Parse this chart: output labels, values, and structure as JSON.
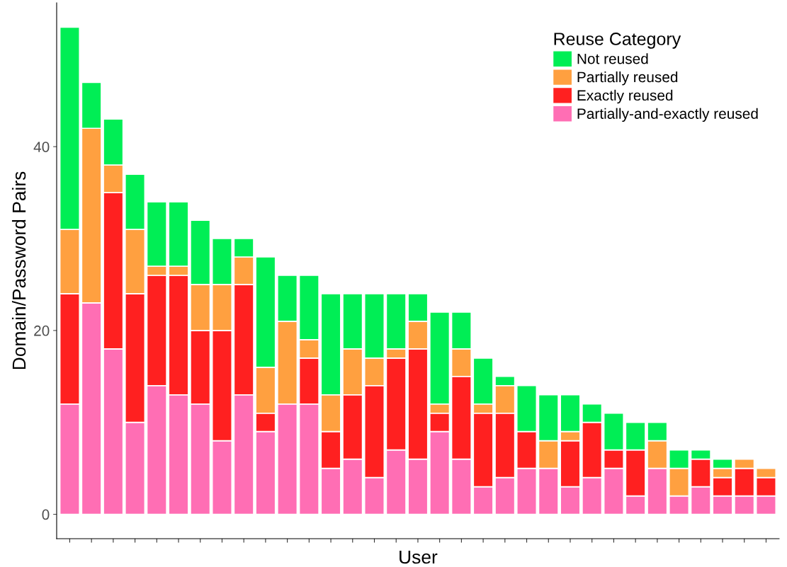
{
  "chart_data": {
    "type": "bar",
    "stacked": true,
    "xlabel": "User",
    "ylabel": "Domain/Password Pairs",
    "legend_title": "Reuse Category",
    "legend": "top right",
    "grid": false,
    "categories": [
      null,
      null,
      null,
      null,
      null,
      null,
      null,
      null,
      null,
      null,
      null,
      null,
      null,
      null,
      null,
      null,
      null,
      null,
      null,
      null,
      null,
      null,
      null,
      null,
      null,
      null,
      null,
      null,
      null,
      null,
      null,
      null,
      null
    ],
    "ylim": [
      -2.65,
      55.65
    ],
    "yticks": [
      0,
      20,
      40
    ],
    "series": [
      {
        "name": "Partially-and-exactly reused",
        "color": "#ff6eb4",
        "values": [
          12,
          23,
          18,
          10,
          14,
          13,
          12,
          8,
          13,
          9,
          12,
          12,
          5,
          6,
          4,
          7,
          6,
          9,
          6,
          3,
          4,
          5,
          5,
          3,
          4,
          5,
          2,
          5,
          2,
          3,
          2,
          2,
          2
        ]
      },
      {
        "name": "Exactly reused",
        "color": "#ff2020",
        "values": [
          12,
          0,
          17,
          14,
          12,
          13,
          8,
          12,
          12,
          2,
          0,
          5,
          4,
          7,
          10,
          10,
          12,
          2,
          9,
          8,
          7,
          4,
          0,
          5,
          6,
          2,
          5,
          0,
          0,
          3,
          2,
          3,
          2
        ]
      },
      {
        "name": "Partially reused",
        "color": "#ffa040",
        "values": [
          7,
          19,
          3,
          7,
          1,
          1,
          5,
          5,
          3,
          5,
          9,
          2,
          4,
          5,
          3,
          1,
          3,
          1,
          3,
          1,
          3,
          0,
          3,
          1,
          0,
          0,
          0,
          3,
          3,
          0,
          1,
          1,
          1
        ]
      },
      {
        "name": "Not reused",
        "color": "#00ee55",
        "values": [
          22,
          5,
          5,
          6,
          7,
          7,
          7,
          5,
          2,
          12,
          5,
          7,
          11,
          6,
          7,
          6,
          3,
          10,
          4,
          5,
          1,
          5,
          5,
          4,
          2,
          4,
          3,
          2,
          2,
          1,
          1,
          0,
          0
        ]
      }
    ]
  }
}
